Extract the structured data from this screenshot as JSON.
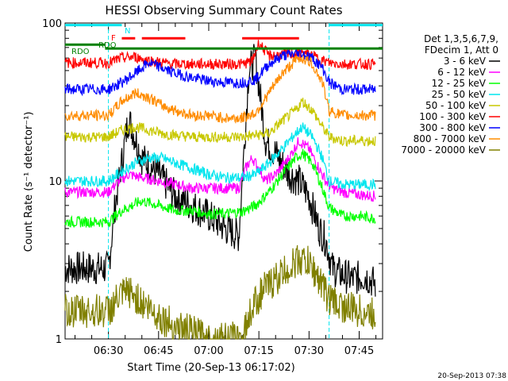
{
  "chart_data": {
    "type": "line",
    "title": "HESSI Observing Summary Count Rates",
    "xlabel": "Start Time (20-Sep-13 06:17:02)",
    "ylabel": "Count Rate (s⁻¹ detector⁻¹)",
    "yscale": "log",
    "ylim": [
      1,
      100
    ],
    "xlim": [
      "06:17:02",
      "07:52:00"
    ],
    "x_ticks": [
      "06:30",
      "06:45",
      "07:00",
      "07:15",
      "07:30",
      "07:45"
    ],
    "y_ticks": [
      "1",
      "10",
      "100"
    ],
    "legend_header": [
      "Det 1,3,5,6,7,9,",
      "FDecim 1, Att 0"
    ],
    "legend_position": "right",
    "footer_timestamp": "20-Sep-2013 07:38",
    "flag_labels": [
      "RDO",
      "RDO",
      "F",
      "N"
    ],
    "flags": [
      {
        "label": "N",
        "color": "#00e5ee",
        "level": 97,
        "intervals": [
          [
            "06:17",
            "06:34"
          ],
          [
            "07:36",
            "07:52"
          ]
        ]
      },
      {
        "label": "F",
        "color": "#ff0000",
        "level": 80,
        "intervals": [
          [
            "06:34",
            "06:38"
          ],
          [
            "06:40",
            "06:53"
          ],
          [
            "07:10",
            "07:27"
          ]
        ]
      },
      {
        "label": "RDO",
        "color": "#008000",
        "level": 73,
        "intervals": [
          [
            "06:17",
            "06:29"
          ]
        ]
      },
      {
        "label": "RDO",
        "color": "#008000",
        "level": 69,
        "intervals": [
          [
            "06:29",
            "07:52"
          ]
        ]
      }
    ],
    "saa_markers": [
      "06:30",
      "07:36"
    ],
    "series": [
      {
        "name": "3 - 6 keV",
        "color": "#000000",
        "x": [
          "06:17",
          "06:30",
          "06:32",
          "06:36",
          "06:40",
          "06:45",
          "06:50",
          "06:55",
          "07:00",
          "07:05",
          "07:09",
          "07:12",
          "07:14",
          "07:17",
          "07:20",
          "07:24",
          "07:27",
          "07:30",
          "07:33",
          "07:35",
          "07:37",
          "07:39",
          "07:43",
          "07:47",
          "07:50"
        ],
        "y": [
          2.8,
          2.8,
          7,
          25,
          14,
          11,
          8,
          7,
          6,
          5,
          4.5,
          50,
          60,
          18,
          15,
          11,
          10,
          8,
          5,
          4.2,
          2.8,
          2.6,
          2.4,
          2.5,
          2.2
        ]
      },
      {
        "name": "6 - 12 keV",
        "color": "#ff00ff",
        "x": [
          "06:17",
          "06:30",
          "06:32",
          "06:36",
          "06:40",
          "06:45",
          "06:50",
          "06:55",
          "07:00",
          "07:05",
          "07:09",
          "07:11",
          "07:13",
          "07:15",
          "07:17",
          "07:20",
          "07:24",
          "07:27",
          "07:30",
          "07:33",
          "07:35",
          "07:37",
          "07:40",
          "07:45",
          "07:50"
        ],
        "y": [
          8.5,
          8.5,
          9.5,
          11,
          10.5,
          10,
          9.5,
          9,
          9,
          9,
          9,
          12,
          14,
          12,
          10,
          11,
          14,
          18,
          16,
          12,
          10,
          9,
          8.5,
          8.2,
          8.0
        ]
      },
      {
        "name": "12 - 25 keV",
        "color": "#00ff00",
        "x": [
          "06:17",
          "06:30",
          "06:34",
          "06:40",
          "06:45",
          "06:50",
          "06:55",
          "07:00",
          "07:05",
          "07:10",
          "07:14",
          "07:18",
          "07:22",
          "07:26",
          "07:28",
          "07:31",
          "07:34",
          "07:36",
          "07:40",
          "07:45",
          "07:50"
        ],
        "y": [
          5.5,
          5.5,
          6.5,
          7.5,
          7,
          6.5,
          6.5,
          6.2,
          6.2,
          6.4,
          7,
          8.5,
          11,
          14,
          15,
          13,
          9,
          6.8,
          6.0,
          6.0,
          5.8
        ]
      },
      {
        "name": "25 - 50 keV",
        "color": "#00e5ee",
        "x": [
          "06:17",
          "06:30",
          "06:34",
          "06:38",
          "06:42",
          "06:46",
          "06:50",
          "06:55",
          "07:00",
          "07:05",
          "07:10",
          "07:14",
          "07:18",
          "07:22",
          "07:26",
          "07:28",
          "07:31",
          "07:34",
          "07:36",
          "07:40",
          "07:45",
          "07:50"
        ],
        "y": [
          10,
          10,
          11.5,
          13,
          14,
          14,
          13,
          12,
          11,
          10.5,
          10.5,
          11,
          13,
          16,
          20,
          22,
          19,
          14,
          10,
          9.5,
          9.5,
          9.5
        ]
      },
      {
        "name": "50 - 100 keV",
        "color": "#c8c800",
        "x": [
          "06:17",
          "06:30",
          "06:34",
          "06:38",
          "06:42",
          "06:46",
          "06:50",
          "06:55",
          "07:00",
          "07:05",
          "07:10",
          "07:14",
          "07:18",
          "07:22",
          "07:26",
          "07:28",
          "07:31",
          "07:34",
          "07:36",
          "07:40",
          "07:45",
          "07:50"
        ],
        "y": [
          19,
          19,
          21,
          22,
          21,
          20,
          19.5,
          19,
          19,
          19,
          19,
          19.5,
          20,
          24,
          28,
          32,
          28,
          22,
          19,
          18,
          18,
          18
        ]
      },
      {
        "name": "100 - 300 keV",
        "color": "#ff0000",
        "x": [
          "06:17",
          "06:30",
          "06:34",
          "06:38",
          "06:42",
          "06:46",
          "06:50",
          "06:55",
          "07:00",
          "07:05",
          "07:10",
          "07:13",
          "07:15",
          "07:18",
          "07:22",
          "07:26",
          "07:28",
          "07:31",
          "07:34",
          "07:36",
          "07:40",
          "07:45",
          "07:50"
        ],
        "y": [
          56,
          56,
          60,
          61,
          58,
          56,
          55,
          55,
          55,
          55,
          55,
          57,
          75,
          62,
          63,
          64,
          65,
          62,
          58,
          56,
          55,
          55,
          55
        ]
      },
      {
        "name": "300 - 800 keV",
        "color": "#0000ff",
        "x": [
          "06:17",
          "06:30",
          "06:34",
          "06:38",
          "06:42",
          "06:46",
          "06:50",
          "06:55",
          "07:00",
          "07:05",
          "07:10",
          "07:14",
          "07:18",
          "07:22",
          "07:26",
          "07:28",
          "07:31",
          "07:34",
          "07:36",
          "07:40",
          "07:45",
          "07:50"
        ],
        "y": [
          38,
          38,
          42,
          48,
          56,
          52,
          48,
          45,
          43,
          42,
          42,
          44,
          55,
          62,
          64,
          64,
          60,
          52,
          42,
          38,
          38,
          38
        ]
      },
      {
        "name": "800 - 7000 keV",
        "color": "#ff8c00",
        "x": [
          "06:17",
          "06:30",
          "06:34",
          "06:38",
          "06:42",
          "06:46",
          "06:50",
          "06:55",
          "07:00",
          "07:05",
          "07:10",
          "07:14",
          "07:18",
          "07:22",
          "07:26",
          "07:28",
          "07:31",
          "07:34",
          "07:36",
          "07:40",
          "07:45",
          "07:50"
        ],
        "y": [
          26,
          26,
          32,
          36,
          34,
          30,
          28,
          26,
          26,
          25,
          25,
          27,
          36,
          48,
          58,
          60,
          55,
          42,
          28,
          26,
          26,
          26
        ]
      },
      {
        "name": "7000 - 20000 keV",
        "color": "#808000",
        "x": [
          "06:17",
          "06:30",
          "06:33",
          "06:36",
          "06:40",
          "06:45",
          "06:50",
          "06:55",
          "07:00",
          "07:05",
          "07:10",
          "07:13",
          "07:16",
          "07:20",
          "07:24",
          "07:27",
          "07:30",
          "07:33",
          "07:36",
          "07:40",
          "07:45",
          "07:50"
        ],
        "y": [
          1.5,
          1.5,
          1.8,
          2.0,
          1.7,
          1.4,
          1.2,
          1.1,
          1.0,
          1.0,
          1.0,
          1.6,
          2.0,
          2.4,
          2.8,
          3.2,
          3.0,
          2.4,
          1.8,
          1.6,
          1.5,
          1.4
        ]
      }
    ]
  }
}
